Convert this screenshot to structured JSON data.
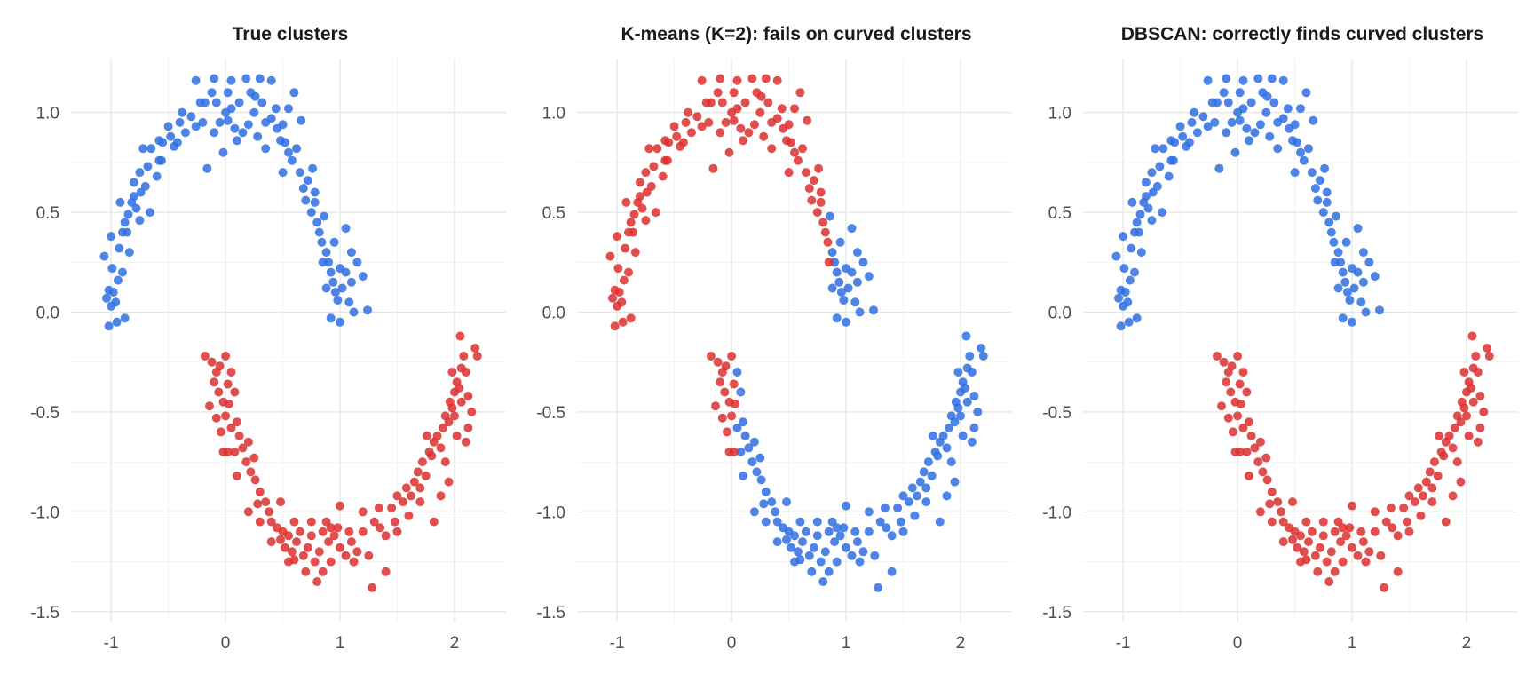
{
  "palette": {
    "cluster_1": "#2f6fe0",
    "cluster_2": "#dc2f2f"
  },
  "chart_data": [
    {
      "type": "scatter",
      "title": "True clusters",
      "xlabel": "",
      "ylabel": "",
      "xlim": [
        -1.35,
        2.45
      ],
      "ylim": [
        -1.55,
        1.27
      ],
      "xticks": [
        -1,
        0,
        1,
        2
      ],
      "xtick_labels": [
        "-1",
        "0",
        "1",
        "2"
      ],
      "yticks": [
        -1.5,
        -1.0,
        -0.5,
        0.0,
        0.5,
        1.0
      ],
      "ytick_labels": [
        "-1.5",
        "-1.0",
        "-0.5",
        "0.0",
        "0.5",
        "1.0"
      ],
      "grid": true,
      "legend": "none",
      "upper_moon_color": "cluster_1",
      "lower_moon_color": "cluster_2"
    },
    {
      "type": "scatter",
      "title": "K-means (K=2): fails on curved clusters",
      "xlabel": "",
      "ylabel": "",
      "xlim": [
        -1.35,
        2.45
      ],
      "ylim": [
        -1.55,
        1.27
      ],
      "xticks": [
        -1,
        0,
        1,
        2
      ],
      "xtick_labels": [
        "-1",
        "0",
        "1",
        "2"
      ],
      "yticks": [
        -1.5,
        -1.0,
        -0.5,
        0.0,
        0.5,
        1.0
      ],
      "ytick_labels": [
        "-1.5",
        "-1.0",
        "-0.5",
        "0.0",
        "0.5",
        "1.0"
      ],
      "grid": true,
      "legend": "none",
      "coloring": "by_x_split",
      "upper_moon_split_x": 0.86,
      "lower_moon_split_x": 0.05
    },
    {
      "type": "scatter",
      "title": "DBSCAN: correctly finds curved clusters",
      "xlabel": "",
      "ylabel": "",
      "xlim": [
        -1.35,
        2.45
      ],
      "ylim": [
        -1.55,
        1.27
      ],
      "xticks": [
        -1,
        0,
        1,
        2
      ],
      "xtick_labels": [
        "-1",
        "0",
        "1",
        "2"
      ],
      "yticks": [
        -1.5,
        -1.0,
        -0.5,
        0.0,
        0.5,
        1.0
      ],
      "ytick_labels": [
        "-1.5",
        "-1.0",
        "-0.5",
        "0.0",
        "0.5",
        "1.0"
      ],
      "grid": true,
      "legend": "none",
      "upper_moon_color": "cluster_1",
      "lower_moon_color": "cluster_2"
    }
  ],
  "points": {
    "upper_moon": [
      [
        -1.04,
        0.07
      ],
      [
        -1.0,
        0.03
      ],
      [
        -1.02,
        0.11
      ],
      [
        -0.98,
        0.1
      ],
      [
        -0.96,
        0.05
      ],
      [
        -0.94,
        0.16
      ],
      [
        -1.06,
        0.28
      ],
      [
        -0.9,
        0.2
      ],
      [
        -0.93,
        0.32
      ],
      [
        -0.86,
        0.4
      ],
      [
        -0.95,
        -0.05
      ],
      [
        -1.02,
        -0.07
      ],
      [
        -0.88,
        -0.03
      ],
      [
        -0.99,
        0.22
      ],
      [
        -0.84,
        0.3
      ],
      [
        -0.88,
        0.45
      ],
      [
        -0.82,
        0.55
      ],
      [
        -0.85,
        0.49
      ],
      [
        -0.78,
        0.52
      ],
      [
        -0.8,
        0.58
      ],
      [
        -0.75,
        0.46
      ],
      [
        -0.74,
        0.6
      ],
      [
        -0.7,
        0.63
      ],
      [
        -0.75,
        0.7
      ],
      [
        -0.68,
        0.73
      ],
      [
        -0.65,
        0.82
      ],
      [
        -0.72,
        0.82
      ],
      [
        -0.6,
        0.68
      ],
      [
        -0.58,
        0.76
      ],
      [
        -0.55,
        0.85
      ],
      [
        -0.5,
        0.93
      ],
      [
        -0.48,
        0.88
      ],
      [
        -0.42,
        0.85
      ],
      [
        -0.4,
        0.95
      ],
      [
        -0.35,
        0.9
      ],
      [
        -0.3,
        0.98
      ],
      [
        -0.26,
        0.93
      ],
      [
        -0.2,
        0.95
      ],
      [
        -0.18,
        1.05
      ],
      [
        -0.12,
        1.1
      ],
      [
        -0.08,
        1.05
      ],
      [
        -0.05,
        0.95
      ],
      [
        0.0,
        1.0
      ],
      [
        0.02,
        0.96
      ],
      [
        0.05,
        1.02
      ],
      [
        0.08,
        0.92
      ],
      [
        0.12,
        1.05
      ],
      [
        0.15,
        0.9
      ],
      [
        0.2,
        0.94
      ],
      [
        0.22,
        1.1
      ],
      [
        0.25,
        1.0
      ],
      [
        0.28,
        0.88
      ],
      [
        0.32,
        1.05
      ],
      [
        0.35,
        0.95
      ],
      [
        0.4,
        0.97
      ],
      [
        0.45,
        0.92
      ],
      [
        0.5,
        0.94
      ],
      [
        0.52,
        0.85
      ],
      [
        0.55,
        0.8
      ],
      [
        0.58,
        0.76
      ],
      [
        0.62,
        0.82
      ],
      [
        0.65,
        0.7
      ],
      [
        0.68,
        0.62
      ],
      [
        0.7,
        0.56
      ],
      [
        0.72,
        0.66
      ],
      [
        0.75,
        0.5
      ],
      [
        0.78,
        0.55
      ],
      [
        0.8,
        0.45
      ],
      [
        0.82,
        0.4
      ],
      [
        0.84,
        0.35
      ],
      [
        0.86,
        0.48
      ],
      [
        0.88,
        0.3
      ],
      [
        0.9,
        0.25
      ],
      [
        0.92,
        0.2
      ],
      [
        0.94,
        0.15
      ],
      [
        0.96,
        0.1
      ],
      [
        0.98,
        0.06
      ],
      [
        1.0,
        0.22
      ],
      [
        1.02,
        0.12
      ],
      [
        1.05,
        0.2
      ],
      [
        1.08,
        0.05
      ],
      [
        1.1,
        0.15
      ],
      [
        1.12,
        0.0
      ],
      [
        1.15,
        0.25
      ],
      [
        1.2,
        0.18
      ],
      [
        1.24,
        0.01
      ],
      [
        0.92,
        -0.03
      ],
      [
        1.0,
        -0.05
      ],
      [
        0.95,
        0.35
      ],
      [
        1.05,
        0.42
      ],
      [
        0.6,
        1.1
      ],
      [
        0.55,
        1.02
      ],
      [
        0.3,
        1.17
      ],
      [
        0.18,
        1.17
      ],
      [
        0.05,
        1.16
      ],
      [
        -0.1,
        1.17
      ],
      [
        -0.26,
        1.16
      ],
      [
        0.4,
        1.16
      ],
      [
        -0.58,
        0.86
      ],
      [
        -0.9,
        0.4
      ],
      [
        -1.0,
        0.38
      ],
      [
        -0.92,
        0.55
      ],
      [
        0.66,
        0.96
      ],
      [
        0.76,
        0.72
      ],
      [
        -0.66,
        0.5
      ],
      [
        -0.38,
        1.0
      ],
      [
        0.1,
        0.86
      ],
      [
        -0.1,
        0.9
      ],
      [
        0.35,
        0.82
      ],
      [
        -0.45,
        0.83
      ],
      [
        0.78,
        0.6
      ],
      [
        0.85,
        0.25
      ],
      [
        0.88,
        0.12
      ],
      [
        1.1,
        0.3
      ],
      [
        -0.8,
        0.65
      ],
      [
        0.48,
        0.86
      ],
      [
        -0.16,
        0.72
      ],
      [
        -0.56,
        0.76
      ],
      [
        0.26,
        1.08
      ],
      [
        -0.22,
        1.05
      ],
      [
        0.44,
        1.02
      ],
      [
        0.02,
        1.1
      ],
      [
        -0.02,
        0.8
      ],
      [
        0.5,
        0.7
      ]
    ],
    "lower_moon": [
      [
        -0.18,
        -0.22
      ],
      [
        -0.12,
        -0.25
      ],
      [
        -0.08,
        -0.3
      ],
      [
        -0.05,
        -0.27
      ],
      [
        0.0,
        -0.22
      ],
      [
        -0.1,
        -0.35
      ],
      [
        -0.06,
        -0.4
      ],
      [
        0.05,
        -0.3
      ],
      [
        0.02,
        -0.36
      ],
      [
        -0.02,
        -0.45
      ],
      [
        0.08,
        -0.4
      ],
      [
        -0.14,
        -0.47
      ],
      [
        0.0,
        -0.52
      ],
      [
        -0.08,
        -0.53
      ],
      [
        0.05,
        -0.58
      ],
      [
        0.1,
        -0.55
      ],
      [
        0.12,
        -0.62
      ],
      [
        0.08,
        -0.7
      ],
      [
        0.02,
        -0.7
      ],
      [
        -0.02,
        -0.7
      ],
      [
        0.15,
        -0.68
      ],
      [
        0.18,
        -0.75
      ],
      [
        0.2,
        -0.65
      ],
      [
        0.22,
        -0.8
      ],
      [
        0.26,
        -0.84
      ],
      [
        0.3,
        -0.9
      ],
      [
        0.28,
        -0.96
      ],
      [
        0.35,
        -0.95
      ],
      [
        0.38,
        -1.0
      ],
      [
        0.4,
        -1.05
      ],
      [
        0.45,
        -1.08
      ],
      [
        0.5,
        -1.1
      ],
      [
        0.48,
        -1.14
      ],
      [
        0.52,
        -1.18
      ],
      [
        0.55,
        -1.12
      ],
      [
        0.58,
        -1.2
      ],
      [
        0.6,
        -1.24
      ],
      [
        0.62,
        -1.15
      ],
      [
        0.65,
        -1.1
      ],
      [
        0.68,
        -1.22
      ],
      [
        0.7,
        -1.3
      ],
      [
        0.72,
        -1.18
      ],
      [
        0.75,
        -1.12
      ],
      [
        0.78,
        -1.25
      ],
      [
        0.8,
        -1.35
      ],
      [
        0.82,
        -1.2
      ],
      [
        0.85,
        -1.1
      ],
      [
        0.88,
        -1.05
      ],
      [
        0.9,
        -1.15
      ],
      [
        0.92,
        -1.25
      ],
      [
        0.95,
        -1.12
      ],
      [
        0.98,
        -1.08
      ],
      [
        1.0,
        -1.18
      ],
      [
        1.05,
        -1.22
      ],
      [
        1.08,
        -1.1
      ],
      [
        1.1,
        -1.15
      ],
      [
        1.15,
        -1.2
      ],
      [
        1.2,
        -1.1
      ],
      [
        1.25,
        -1.22
      ],
      [
        1.28,
        -1.38
      ],
      [
        1.3,
        -1.05
      ],
      [
        1.35,
        -1.08
      ],
      [
        1.4,
        -1.12
      ],
      [
        1.45,
        -0.98
      ],
      [
        1.48,
        -1.05
      ],
      [
        1.5,
        -0.92
      ],
      [
        1.55,
        -0.95
      ],
      [
        1.58,
        -0.88
      ],
      [
        1.62,
        -0.92
      ],
      [
        1.65,
        -0.85
      ],
      [
        1.68,
        -0.8
      ],
      [
        1.7,
        -0.88
      ],
      [
        1.72,
        -0.75
      ],
      [
        1.75,
        -0.82
      ],
      [
        1.78,
        -0.7
      ],
      [
        1.8,
        -0.72
      ],
      [
        1.82,
        -0.65
      ],
      [
        1.85,
        -0.62
      ],
      [
        1.88,
        -0.68
      ],
      [
        1.9,
        -0.58
      ],
      [
        1.92,
        -0.52
      ],
      [
        1.95,
        -0.55
      ],
      [
        1.96,
        -0.45
      ],
      [
        1.98,
        -0.48
      ],
      [
        2.0,
        -0.4
      ],
      [
        2.02,
        -0.35
      ],
      [
        2.04,
        -0.38
      ],
      [
        2.06,
        -0.28
      ],
      [
        2.08,
        -0.22
      ],
      [
        2.1,
        -0.3
      ],
      [
        2.12,
        -0.42
      ],
      [
        2.15,
        -0.5
      ],
      [
        2.18,
        -0.18
      ],
      [
        2.2,
        -0.22
      ],
      [
        2.05,
        -0.12
      ],
      [
        1.98,
        -0.3
      ],
      [
        1.92,
        -0.75
      ],
      [
        2.02,
        -0.62
      ],
      [
        2.1,
        -0.65
      ],
      [
        1.88,
        -0.92
      ],
      [
        1.95,
        -0.85
      ],
      [
        1.82,
        -1.05
      ],
      [
        1.6,
        -1.02
      ],
      [
        1.4,
        -1.3
      ],
      [
        1.2,
        -1.0
      ],
      [
        1.0,
        -0.97
      ],
      [
        0.6,
        -1.05
      ],
      [
        0.3,
        -1.05
      ],
      [
        0.2,
        -1.0
      ],
      [
        0.4,
        -1.15
      ],
      [
        0.1,
        -0.82
      ],
      [
        0.25,
        -0.73
      ],
      [
        -0.04,
        -0.6
      ],
      [
        0.03,
        -0.46
      ],
      [
        0.75,
        -1.05
      ],
      [
        1.12,
        -1.25
      ],
      [
        1.5,
        -1.1
      ],
      [
        0.85,
        -1.3
      ],
      [
        0.55,
        -1.25
      ],
      [
        1.7,
        -0.95
      ],
      [
        2.0,
        -0.52
      ],
      [
        2.12,
        -0.58
      ],
      [
        0.48,
        -0.95
      ],
      [
        0.92,
        -1.08
      ],
      [
        1.34,
        -0.98
      ],
      [
        1.76,
        -0.62
      ],
      [
        2.06,
        -0.45
      ]
    ]
  }
}
